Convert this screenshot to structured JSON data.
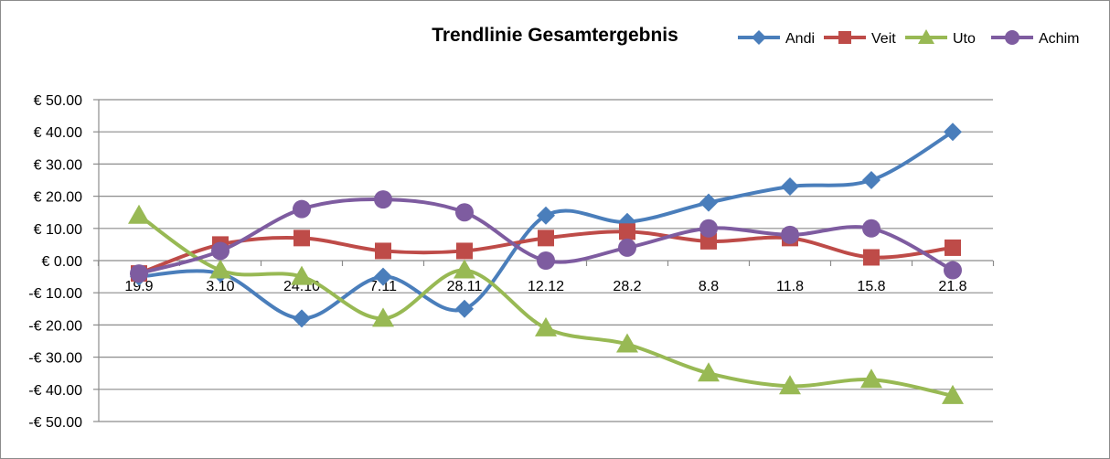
{
  "chart_data": {
    "type": "line",
    "title": "Trendlinie Gesamtergebnis",
    "xlabel": "",
    "ylabel": "",
    "categories": [
      "19.9",
      "3.10",
      "24.10",
      "7.11",
      "28.11",
      "12.12",
      "28.2",
      "8.8",
      "11.8",
      "15.8",
      "21.8"
    ],
    "ylim": [
      -50,
      50
    ],
    "ytick_step": 10,
    "ytick_labels": [
      "€ 50.00",
      "€ 40.00",
      "€ 30.00",
      "€ 20.00",
      "€ 10.00",
      "€ 0.00",
      "-€ 10.00",
      "-€ 20.00",
      "-€ 30.00",
      "-€ 40.00",
      "-€ 50.00"
    ],
    "grid": true,
    "legend_position": "top-right",
    "smooth": true,
    "series": [
      {
        "name": "Andi",
        "color": "#4a7ebb",
        "marker": "diamond",
        "values": [
          -5,
          -4,
          -18,
          -5,
          -15,
          14,
          12,
          18,
          23,
          25,
          40
        ]
      },
      {
        "name": "Veit",
        "color": "#be4b48",
        "marker": "square",
        "values": [
          -4,
          5,
          7,
          3,
          3,
          7,
          9,
          6,
          7,
          1,
          4
        ]
      },
      {
        "name": "Uto",
        "color": "#98b954",
        "marker": "triangle",
        "values": [
          14,
          -3,
          -5,
          -18,
          -3,
          -21,
          -26,
          -35,
          -39,
          -37,
          -42
        ]
      },
      {
        "name": "Achim",
        "color": "#7e5ca0",
        "marker": "circle",
        "values": [
          -4,
          3,
          16,
          19,
          15,
          0,
          4,
          10,
          8,
          10,
          -3
        ]
      }
    ]
  }
}
